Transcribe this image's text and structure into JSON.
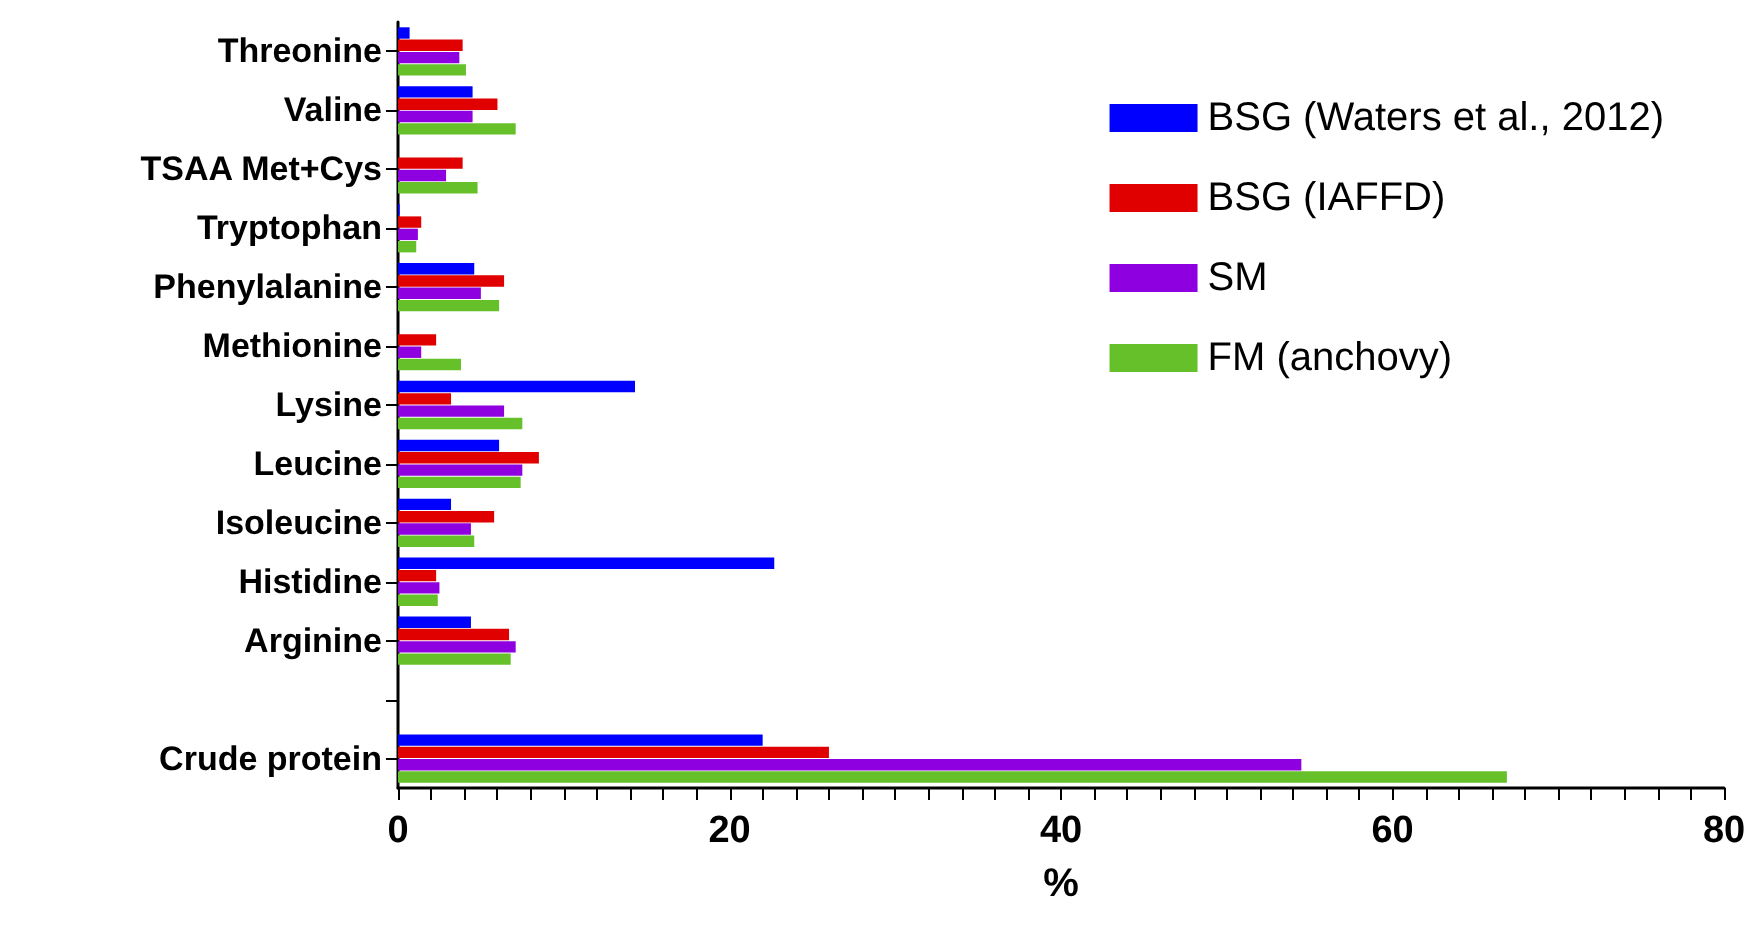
{
  "chart_data": {
    "type": "bar",
    "orientation": "horizontal",
    "xlabel": "%",
    "categories": [
      "Threonine",
      "Valine",
      "TSAA Met+Cys",
      "Tryptophan",
      "Phenylalanine",
      "Methionine",
      "Lysine",
      "Leucine",
      "Isoleucine",
      "Histidine",
      "Arginine",
      null,
      "Crude protein"
    ],
    "series": [
      {
        "name": "BSG (Waters et al., 2012)",
        "color": "#0000ff",
        "values": [
          0.7,
          4.5,
          null,
          0.1,
          4.6,
          null,
          14.3,
          6.1,
          3.2,
          22.7,
          4.4,
          null,
          22.0
        ]
      },
      {
        "name": "BSG (IAFFD)",
        "color": "#e00000",
        "values": [
          3.9,
          6.0,
          3.9,
          1.4,
          6.4,
          2.3,
          3.2,
          8.5,
          5.8,
          2.3,
          6.7,
          null,
          26.0
        ]
      },
      {
        "name": "SM",
        "color": "#8f00e0",
        "values": [
          3.7,
          4.5,
          2.9,
          1.2,
          5.0,
          1.4,
          6.4,
          7.5,
          4.4,
          2.5,
          7.1,
          null,
          54.5
        ]
      },
      {
        "name": "FM (anchovy)",
        "color": "#66c02a",
        "values": [
          4.1,
          7.1,
          4.8,
          1.1,
          6.1,
          3.8,
          7.5,
          7.4,
          4.6,
          2.4,
          6.8,
          null,
          66.9
        ]
      }
    ],
    "xlim": [
      0,
      80
    ],
    "xticks": [
      0,
      {
        "value": 2,
        "label": null
      },
      {
        "value": 4,
        "label": null
      },
      {
        "value": 6,
        "label": null
      },
      {
        "value": 8,
        "label": null
      },
      {
        "value": 10,
        "label": null
      },
      {
        "value": 12,
        "label": null
      },
      {
        "value": 14,
        "label": null
      },
      {
        "value": 16,
        "label": null
      },
      {
        "value": 18,
        "label": null
      },
      20,
      {
        "value": 22,
        "label": null
      },
      {
        "value": 24,
        "label": null
      },
      {
        "value": 26,
        "label": null
      },
      {
        "value": 28,
        "label": null
      },
      {
        "value": 30,
        "label": null
      },
      {
        "value": 32,
        "label": null
      },
      {
        "value": 34,
        "label": null
      },
      {
        "value": 36,
        "label": null
      },
      {
        "value": 38,
        "label": null
      },
      40,
      {
        "value": 42,
        "label": null
      },
      {
        "value": 44,
        "label": null
      },
      {
        "value": 46,
        "label": null
      },
      {
        "value": 48,
        "label": null
      },
      {
        "value": 50,
        "label": null
      },
      {
        "value": 52,
        "label": null
      },
      {
        "value": 54,
        "label": null
      },
      {
        "value": 56,
        "label": null
      },
      {
        "value": 58,
        "label": null
      },
      60,
      {
        "value": 62,
        "label": null
      },
      {
        "value": 64,
        "label": null
      },
      {
        "value": 66,
        "label": null
      },
      {
        "value": 68,
        "label": null
      },
      {
        "value": 70,
        "label": null
      },
      {
        "value": 72,
        "label": null
      },
      {
        "value": 74,
        "label": null
      },
      {
        "value": 76,
        "label": null
      },
      {
        "value": 78,
        "label": null
      },
      80
    ],
    "grid": false,
    "legend": "top right"
  }
}
